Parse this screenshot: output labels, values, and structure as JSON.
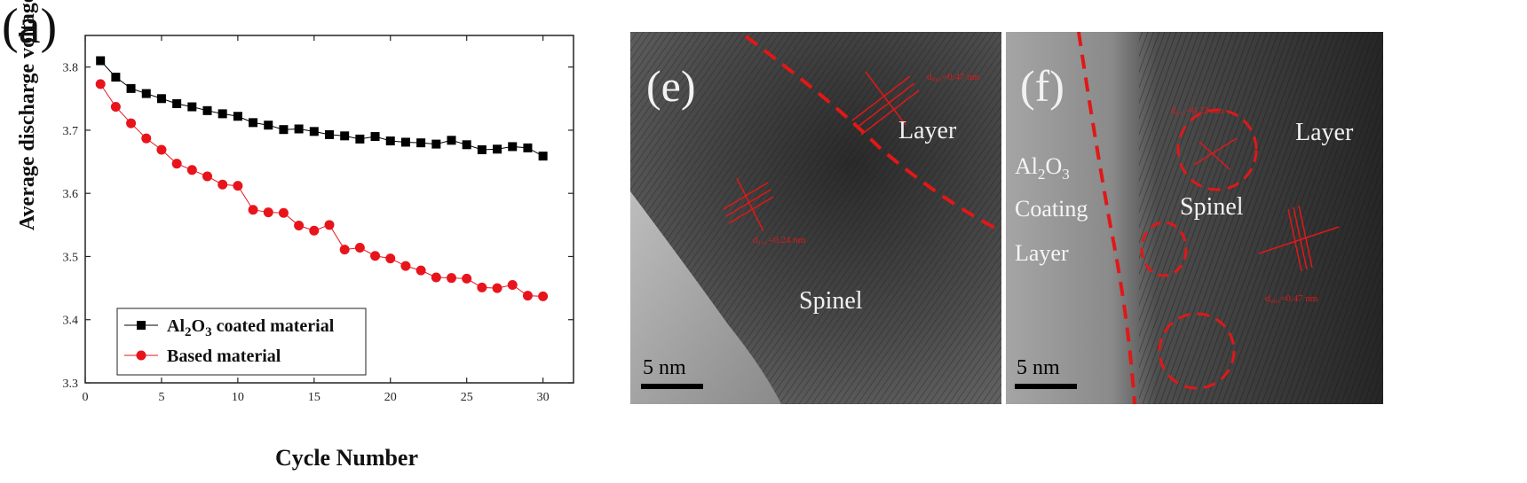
{
  "panel_a": {
    "letter": "(a)",
    "chart_data": {
      "type": "line",
      "xlabel": "Cycle Number",
      "ylabel": "Average discharge voltage(V)",
      "xlim": [
        0,
        32
      ],
      "ylim": [
        3.3,
        3.85
      ],
      "xticks": [
        0,
        5,
        10,
        15,
        20,
        25,
        30
      ],
      "yticks": [
        3.3,
        3.4,
        3.5,
        3.6,
        3.7,
        3.8
      ],
      "legend_position": "bottom-left",
      "grid": false,
      "x": [
        1,
        2,
        3,
        4,
        5,
        6,
        7,
        8,
        9,
        10,
        11,
        12,
        13,
        14,
        15,
        16,
        17,
        18,
        19,
        20,
        21,
        22,
        23,
        24,
        25,
        26,
        27,
        28,
        29,
        30
      ],
      "series": [
        {
          "name": "Al2O3 coated material",
          "marker": "square",
          "color": "#000000",
          "values": [
            3.81,
            3.784,
            3.766,
            3.758,
            3.75,
            3.742,
            3.737,
            3.731,
            3.726,
            3.722,
            3.712,
            3.708,
            3.701,
            3.702,
            3.698,
            3.693,
            3.691,
            3.686,
            3.69,
            3.683,
            3.681,
            3.68,
            3.678,
            3.684,
            3.677,
            3.669,
            3.67,
            3.674,
            3.672,
            3.659
          ]
        },
        {
          "name": "Based material",
          "marker": "circle",
          "color": "#e8141c",
          "values": [
            3.773,
            3.737,
            3.711,
            3.687,
            3.669,
            3.647,
            3.637,
            3.627,
            3.614,
            3.612,
            3.574,
            3.57,
            3.569,
            3.549,
            3.541,
            3.55,
            3.511,
            3.514,
            3.501,
            3.497,
            3.485,
            3.478,
            3.467,
            3.466,
            3.465,
            3.451,
            3.45,
            3.455,
            3.438,
            3.437
          ]
        }
      ]
    }
  },
  "legend_labels": {
    "series1_prefix": "Al",
    "series1_sub1": "2",
    "series1_mid": "O",
    "series1_sub2": "3",
    "series1_suffix": " coated material",
    "series2": "Based material"
  },
  "panel_e": {
    "letter": "(e)",
    "label_layer": "Layer",
    "label_spinel": "Spinel",
    "scale_bar": "5 nm",
    "d_spacing_top": "d₀₀₃=0.47 nm",
    "d_spacing_mid": "d₁₁₁=0.24 nm"
  },
  "panel_f": {
    "letter": "(f)",
    "label_layer": "Layer",
    "label_spinel": "Spinel",
    "label_coating_al": "Al",
    "label_coating_2": "2",
    "label_coating_o": "O",
    "label_coating_3": "3",
    "label_coating": "Coating",
    "label_coating_layer": "Layer",
    "scale_bar": "5 nm",
    "d_spacing_top": "d₁₁₁=0.22 nm",
    "d_spacing_right": "d₀₀₃=0.47 nm"
  },
  "colors": {
    "tem_dark": "#3a3a3a",
    "tem_light": "#9a9a9a",
    "annotation_red": "#e01818"
  }
}
